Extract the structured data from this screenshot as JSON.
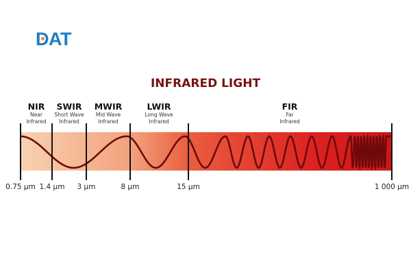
{
  "logo": {
    "text": "DAT",
    "color": "#1b7fc3",
    "icon_color": "#f08a24"
  },
  "title": "INFRARED LIGHT",
  "bands": [
    {
      "abbr": "NIR",
      "line1": "Near",
      "line2": "Infrared"
    },
    {
      "abbr": "SWIR",
      "line1": "Short Wave",
      "line2": "Infrared"
    },
    {
      "abbr": "MWIR",
      "line1": "Mid Wave",
      "line2": "Infrared"
    },
    {
      "abbr": "LWIR",
      "line1": "Long Wave",
      "line2": "Infrared"
    },
    {
      "abbr": "FIR",
      "line1": "Far",
      "line2": "Infrared"
    }
  ],
  "boundaries": [
    "0.75 µm",
    "1.4 µm",
    "3 µm",
    "8 µm",
    "15 µm",
    "1 000 µm"
  ],
  "colors": {
    "band_start": "#f8cfac",
    "band_mid": "#ea5a3c",
    "band_end": "#d6191b",
    "wave": "#6e0a0a",
    "title": "#7a1212"
  }
}
